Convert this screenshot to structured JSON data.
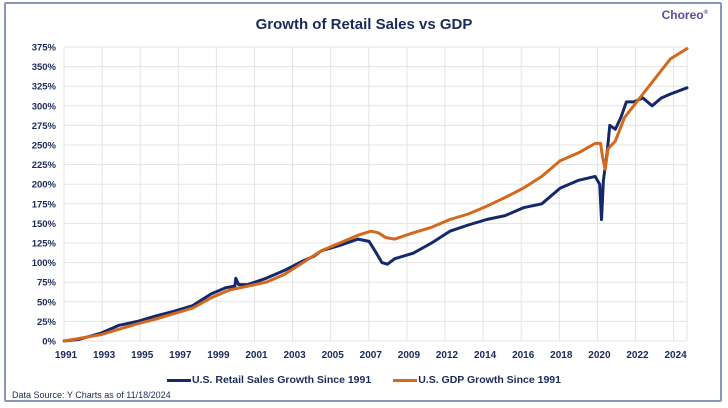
{
  "header": {
    "brand": "Choreo"
  },
  "footer": {
    "source": "Data Source: Y Charts as of  11/18/2024"
  },
  "colors": {
    "retail": "#14286a",
    "gdp": "#d2691e",
    "grid": "#e3e3e3",
    "text": "#1a2a5a"
  },
  "chart_data": {
    "type": "line",
    "title": "Growth of Retail Sales vs GDP",
    "xlabel": "",
    "ylabel": "",
    "x_tick_labels": [
      "1991",
      "1993",
      "1995",
      "1997",
      "1999",
      "2001",
      "2003",
      "2005",
      "2007",
      "2009",
      "2012",
      "2014",
      "2016",
      "2018",
      "2020",
      "2022",
      "2024"
    ],
    "y_tick_labels": [
      "0%",
      "25%",
      "50%",
      "75%",
      "100%",
      "125%",
      "150%",
      "175%",
      "200%",
      "225%",
      "250%",
      "275%",
      "300%",
      "325%",
      "350%",
      "375%"
    ],
    "ylim": [
      0,
      375
    ],
    "y_step": 25,
    "xlim": [
      1991,
      2024.9
    ],
    "grid": true,
    "legend": "bottom",
    "series": [
      {
        "name": "U.S. Retail Sales Growth Since 1991",
        "color": "#14286a",
        "x": [
          1991,
          1991.8,
          1993,
          1994,
          1995,
          1996,
          1997,
          1998,
          1999,
          1999.8,
          2000.3,
          2000.35,
          2000.5,
          2001,
          2002,
          2003,
          2004,
          2004.6,
          2005,
          2006,
          2007,
          2007.6,
          2008.0,
          2008.3,
          2008.6,
          2009,
          2010,
          2011,
          2012,
          2013,
          2014,
          2015,
          2016,
          2017,
          2018,
          2019,
          2019.9,
          2020.15,
          2020.25,
          2020.35,
          2020.55,
          2020.7,
          2021,
          2021.3,
          2021.6,
          2022,
          2022.5,
          2023,
          2023.5,
          2024,
          2024.9
        ],
        "values": [
          0,
          2,
          10,
          20,
          25,
          32,
          38,
          45,
          60,
          68,
          70,
          80,
          72,
          72,
          80,
          90,
          102,
          108,
          115,
          122,
          130,
          127,
          112,
          100,
          98,
          105,
          112,
          125,
          140,
          148,
          155,
          160,
          170,
          175,
          195,
          205,
          210,
          200,
          155,
          205,
          240,
          275,
          270,
          285,
          305,
          305,
          310,
          300,
          310,
          315,
          323
        ]
      },
      {
        "name": "U.S. GDP Growth Since 1991",
        "color": "#d2691e",
        "x": [
          1991,
          1992,
          1993,
          1994,
          1995,
          1996,
          1997,
          1998,
          1999,
          2000,
          2001,
          2002,
          2003,
          2004,
          2005,
          2006,
          2007,
          2007.7,
          2008.1,
          2008.5,
          2009,
          2010,
          2011,
          2012,
          2013,
          2014,
          2015,
          2016,
          2017,
          2018,
          2019,
          2019.9,
          2020.2,
          2020.3,
          2020.45,
          2020.6,
          2020.8,
          2021,
          2021.5,
          2022,
          2022.5,
          2023,
          2023.5,
          2024,
          2024.9
        ],
        "values": [
          0,
          4,
          8,
          15,
          22,
          28,
          35,
          42,
          55,
          65,
          70,
          75,
          85,
          100,
          115,
          125,
          135,
          140,
          138,
          132,
          130,
          138,
          145,
          155,
          162,
          172,
          183,
          195,
          210,
          230,
          240,
          252,
          252,
          235,
          219,
          245,
          250,
          255,
          285,
          300,
          315,
          330,
          345,
          360,
          373
        ]
      }
    ]
  }
}
